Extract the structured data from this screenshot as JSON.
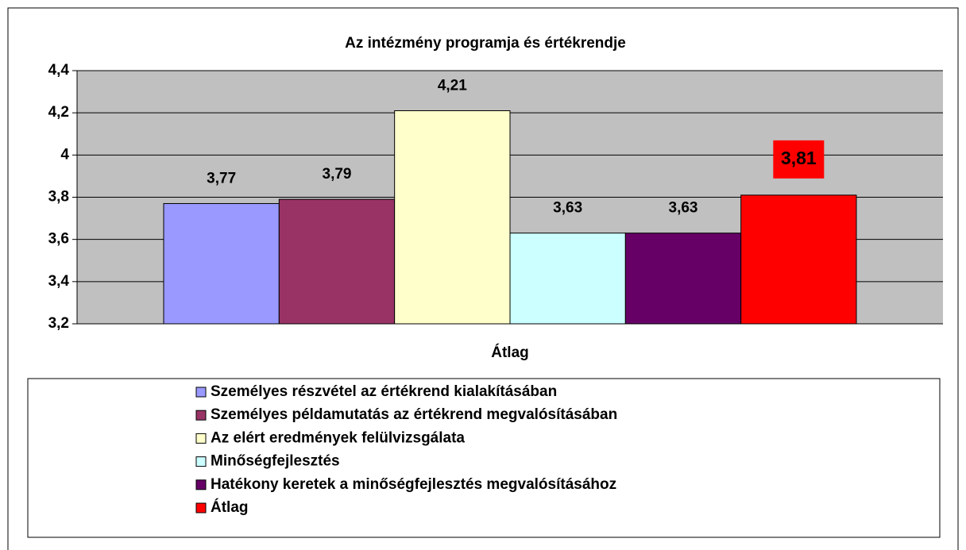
{
  "chart_data": {
    "type": "bar",
    "title": "Az intézmény programja és értékrendje",
    "categories": [
      "Átlag"
    ],
    "series": [
      {
        "name": "Személyes részvétel az értékrend kialakításában",
        "color": "#9999ff",
        "values": [
          3.77
        ],
        "value_labels": [
          "3,77"
        ]
      },
      {
        "name": "Személyes példamutatás az értékrend megvalósításában",
        "color": "#993366",
        "values": [
          3.79
        ],
        "value_labels": [
          "3,79"
        ]
      },
      {
        "name": "Az elért eredmények felülvizsgálata",
        "color": "#ffffcc",
        "values": [
          4.21
        ],
        "value_labels": [
          "4,21"
        ]
      },
      {
        "name": "Minőségfejlesztés",
        "color": "#ccffff",
        "values": [
          3.63
        ],
        "value_labels": [
          "3,63"
        ]
      },
      {
        "name": "Hatékony keretek a minőségfejlesztés megvalósításához",
        "color": "#660066",
        "values": [
          3.63
        ],
        "value_labels": [
          "3,63"
        ]
      },
      {
        "name": "Átlag",
        "color": "#ff0000",
        "values": [
          3.81
        ],
        "value_labels": [
          "3,81"
        ]
      }
    ],
    "ylim": [
      3.2,
      4.4
    ],
    "yticks": [
      {
        "value": 3.2,
        "label": "3,2"
      },
      {
        "value": 3.4,
        "label": "3,4"
      },
      {
        "value": 3.6,
        "label": "3,6"
      },
      {
        "value": 3.8,
        "label": "3,8"
      },
      {
        "value": 4,
        "label": "4"
      },
      {
        "value": 4.2,
        "label": "4,2"
      },
      {
        "value": 4.4,
        "label": "4,4"
      }
    ],
    "grid": true,
    "legend": "bottom"
  }
}
